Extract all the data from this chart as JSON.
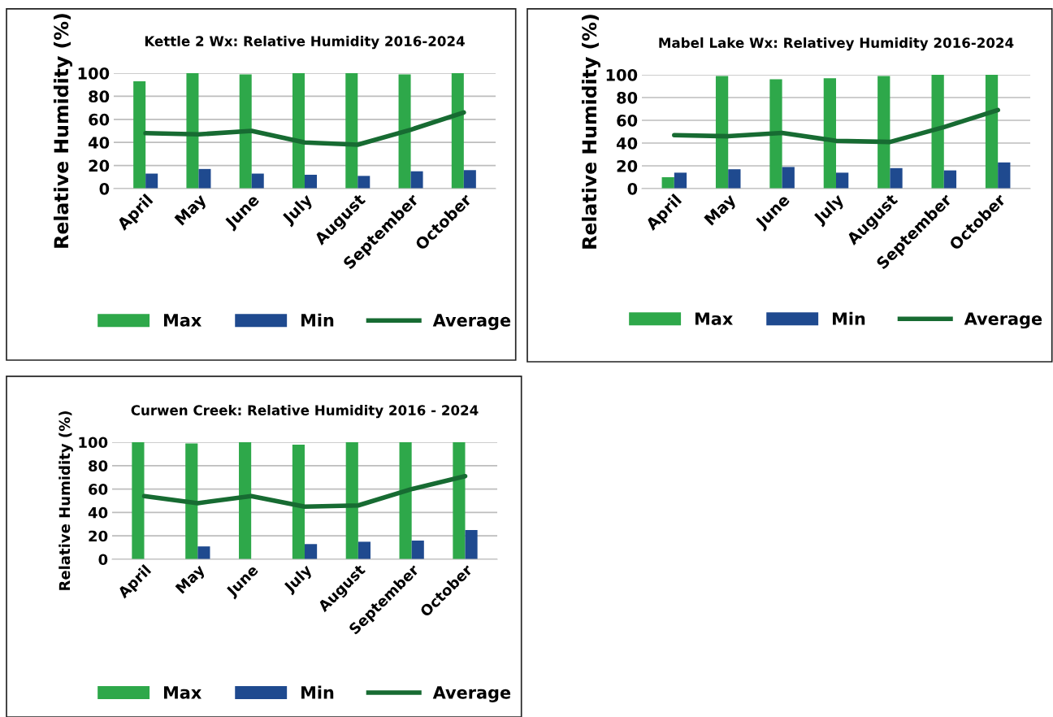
{
  "chart_data": [
    {
      "type": "bar",
      "title": "Kettle 2 Wx: Relative Humidity 2016-2024",
      "ylabel": "Relative Humidity (%)",
      "categories": [
        "April",
        "May",
        "June",
        "July",
        "August",
        "September",
        "October"
      ],
      "ylim": [
        0,
        100
      ],
      "yticks": [
        0,
        20,
        40,
        60,
        80,
        100
      ],
      "grid": "y",
      "legend": "bottom",
      "series": [
        {
          "name": "Max",
          "color": "#2ea84a",
          "values": [
            93,
            100,
            99,
            100,
            100,
            99,
            100
          ]
        },
        {
          "name": "Min",
          "color": "#1f4a8f",
          "values": [
            13,
            17,
            13,
            12,
            11,
            15,
            16
          ]
        },
        {
          "name": "Average",
          "type": "line",
          "color": "#176b32",
          "values": [
            48,
            47,
            50,
            40,
            38,
            51,
            66
          ]
        }
      ]
    },
    {
      "type": "bar",
      "title": "Mabel Lake Wx: Relativey Humidity 2016-2024",
      "ylabel": "Relative Humidity (%)",
      "categories": [
        "April",
        "May",
        "June",
        "July",
        "August",
        "September",
        "October"
      ],
      "ylim": [
        0,
        100
      ],
      "yticks": [
        0,
        20,
        40,
        60,
        80,
        100
      ],
      "grid": "y",
      "legend": "bottom",
      "series": [
        {
          "name": "Max",
          "color": "#2ea84a",
          "values": [
            10,
            99,
            96,
            97,
            99,
            100,
            100
          ]
        },
        {
          "name": "Min",
          "color": "#1f4a8f",
          "values": [
            14,
            17,
            19,
            14,
            18,
            16,
            23
          ]
        },
        {
          "name": "Average",
          "type": "line",
          "color": "#176b32",
          "values": [
            47,
            46,
            49,
            42,
            41,
            54,
            69
          ]
        }
      ]
    },
    {
      "type": "bar",
      "title": "Curwen Creek: Relative Humidity 2016 - 2024",
      "ylabel": "Relative Humidity (%)",
      "categories": [
        "April",
        "May",
        "June",
        "July",
        "August",
        "September",
        "October"
      ],
      "ylim": [
        0,
        100
      ],
      "yticks": [
        0,
        20,
        40,
        60,
        80,
        100
      ],
      "grid": "y",
      "legend": "bottom",
      "series": [
        {
          "name": "Max",
          "color": "#2ea84a",
          "values": [
            100,
            99,
            100,
            98,
            100,
            100,
            100
          ]
        },
        {
          "name": "Min",
          "color": "#1f4a8f",
          "values": [
            null,
            11,
            null,
            13,
            15,
            16,
            25
          ]
        },
        {
          "name": "Average",
          "type": "line",
          "color": "#176b32",
          "values": [
            54,
            48,
            54,
            45,
            46,
            60,
            71
          ]
        }
      ]
    }
  ]
}
